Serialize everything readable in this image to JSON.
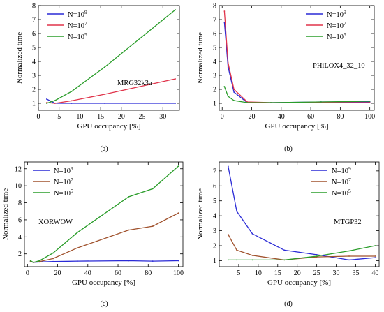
{
  "chart_data": [
    {
      "type": "line",
      "caption": "(a)",
      "annotation": "MRG32k3a",
      "xlabel": "GPU occupancy [%]",
      "ylabel": "Normalized time",
      "xlim": [
        0,
        34
      ],
      "ylim": [
        0.5,
        8
      ],
      "xticks": [
        0,
        5,
        10,
        15,
        20,
        25,
        30
      ],
      "yticks": [
        1,
        2,
        3,
        4,
        5,
        6,
        7,
        8
      ],
      "legend_position": "top-left",
      "series": [
        {
          "name": "N=10^9",
          "label_base": "N=10",
          "label_exp": "9",
          "color": "#2a2ad6",
          "x": [
            2,
            4,
            8,
            16,
            33
          ],
          "y": [
            1.3,
            1.0,
            1.0,
            1.0,
            1.0
          ]
        },
        {
          "name": "N=10^7",
          "label_base": "N=10",
          "label_exp": "7",
          "color": "#e0334a",
          "x": [
            2,
            4,
            8,
            16,
            33
          ],
          "y": [
            1.05,
            1.0,
            1.18,
            1.65,
            2.75
          ]
        },
        {
          "name": "N=10^5",
          "label_base": "N=10",
          "label_exp": "5",
          "color": "#2a9d2a",
          "x": [
            2,
            4,
            8,
            16,
            33
          ],
          "y": [
            1.0,
            1.2,
            1.85,
            3.6,
            7.7
          ]
        }
      ]
    },
    {
      "type": "line",
      "caption": "(b)",
      "annotation": "PHiLOX4_32_10",
      "xlabel": "GPU occupancy [%]",
      "ylabel": "Normalized time",
      "xlim": [
        -2,
        103
      ],
      "ylim": [
        0.5,
        8
      ],
      "xticks": [
        0,
        20,
        40,
        60,
        80,
        100
      ],
      "yticks": [
        1,
        2,
        3,
        4,
        5,
        6,
        7,
        8
      ],
      "legend_position": "top-right",
      "series": [
        {
          "name": "N=10^9",
          "label_base": "N=10",
          "label_exp": "9",
          "color": "#2a2ad6",
          "x": [
            1.5,
            4,
            8,
            17,
            33,
            67,
            100
          ],
          "y": [
            6.8,
            3.6,
            1.8,
            1.05,
            1.05,
            1.1,
            1.1
          ]
        },
        {
          "name": "N=10^7",
          "label_base": "N=10",
          "label_exp": "7",
          "color": "#e0334a",
          "x": [
            1.5,
            4,
            8,
            17,
            33,
            67,
            100
          ],
          "y": [
            7.6,
            3.9,
            2.0,
            1.1,
            1.05,
            1.05,
            1.05
          ]
        },
        {
          "name": "N=10^5",
          "label_base": "N=10",
          "label_exp": "5",
          "color": "#2a9d2a",
          "x": [
            1.5,
            4,
            8,
            17,
            33,
            67,
            100
          ],
          "y": [
            2.2,
            1.5,
            1.2,
            1.05,
            1.05,
            1.1,
            1.15
          ]
        }
      ]
    },
    {
      "type": "line",
      "caption": "(c)",
      "annotation": "XORWOW",
      "xlabel": "GPU occupancy [%]",
      "ylabel": "Normalized time",
      "xlim": [
        -2,
        103
      ],
      "ylim": [
        0.5,
        12.8
      ],
      "xticks": [
        0,
        20,
        40,
        60,
        80,
        100
      ],
      "yticks": [
        2,
        4,
        6,
        8,
        10,
        12
      ],
      "legend_position": "top-left",
      "series": [
        {
          "name": "N=10^9",
          "label_base": "N=10",
          "label_exp": "9",
          "color": "#2a2ad6",
          "x": [
            2,
            4,
            8,
            17,
            33,
            67,
            83,
            100
          ],
          "y": [
            1.1,
            1.0,
            1.05,
            1.1,
            1.15,
            1.2,
            1.15,
            1.2
          ]
        },
        {
          "name": "N=10^7",
          "label_base": "N=10",
          "label_exp": "7",
          "color": "#a0522d",
          "x": [
            2,
            4,
            8,
            17,
            33,
            67,
            83,
            100
          ],
          "y": [
            1.1,
            1.0,
            1.1,
            1.45,
            2.7,
            4.8,
            5.25,
            6.8
          ]
        },
        {
          "name": "N=10^5",
          "label_base": "N=10",
          "label_exp": "5",
          "color": "#2a9d2a",
          "x": [
            2,
            4,
            8,
            17,
            33,
            67,
            83,
            100
          ],
          "y": [
            1.2,
            1.0,
            1.2,
            2.1,
            4.5,
            8.7,
            9.65,
            12.3
          ]
        }
      ]
    },
    {
      "type": "line",
      "caption": "(d)",
      "annotation": "MTGP32",
      "xlabel": "GPU occupancy [%]",
      "ylabel": "Normalized time",
      "xlim": [
        0,
        41
      ],
      "ylim": [
        0.6,
        7.6
      ],
      "xticks": [
        5,
        10,
        15,
        20,
        25,
        30,
        35,
        40
      ],
      "yticks": [
        1,
        2,
        3,
        4,
        5,
        6,
        7
      ],
      "legend_position": "top-right",
      "series": [
        {
          "name": "N=10^9",
          "label_base": "N=10",
          "label_exp": "9",
          "color": "#2a2ad6",
          "x": [
            2.3,
            4.5,
            8.5,
            16.7,
            25,
            33.3,
            40
          ],
          "y": [
            7.3,
            4.3,
            2.8,
            1.7,
            1.4,
            1.05,
            1.2
          ]
        },
        {
          "name": "N=10^7",
          "label_base": "N=10",
          "label_exp": "7",
          "color": "#a0522d",
          "x": [
            2.3,
            4.5,
            8.5,
            16.7,
            25,
            33.3,
            40
          ],
          "y": [
            2.75,
            1.7,
            1.35,
            1.05,
            1.25,
            1.3,
            1.3
          ]
        },
        {
          "name": "N=10^5",
          "label_base": "N=10",
          "label_exp": "5",
          "color": "#2a9d2a",
          "x": [
            2.3,
            4.5,
            8.5,
            16.7,
            25,
            33.3,
            40
          ],
          "y": [
            1.05,
            1.05,
            1.05,
            1.05,
            1.3,
            1.65,
            2.0
          ]
        }
      ]
    }
  ]
}
